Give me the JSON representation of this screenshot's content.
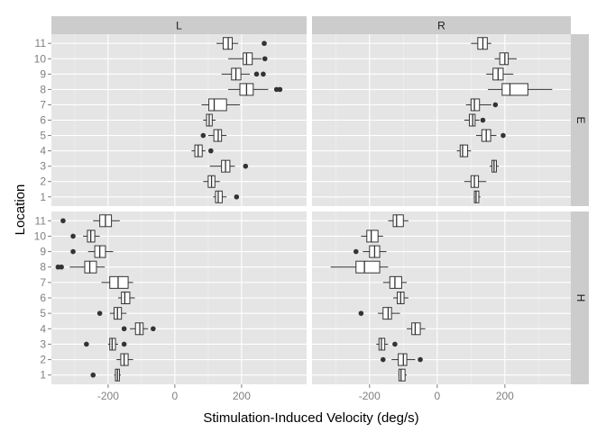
{
  "chart_data": {
    "type": "boxplot",
    "xlabel": "Stimulation-Induced Velocity (deg/s)",
    "ylabel": "Location",
    "xlim": [
      -370,
      395
    ],
    "x_ticks": [
      -200,
      0,
      200
    ],
    "x_tick_labels": [
      "-200",
      "0",
      "200"
    ],
    "locations": [
      "1",
      "2",
      "3",
      "4",
      "5",
      "6",
      "7",
      "8",
      "9",
      "10",
      "11"
    ],
    "column_facets": [
      "L",
      "R"
    ],
    "row_facets": [
      "E",
      "H"
    ],
    "grid": true,
    "panels": [
      {
        "col": "L",
        "row": "E",
        "boxes": [
          {
            "location": "1",
            "whisker_low": 115,
            "q1": 122,
            "median": 130,
            "q3": 142,
            "whisker_high": 155,
            "outliers": [
              185
            ]
          },
          {
            "location": "2",
            "whisker_low": 85,
            "q1": 100,
            "median": 110,
            "q3": 120,
            "whisker_high": 135,
            "outliers": []
          },
          {
            "location": "3",
            "whisker_low": 105,
            "q1": 140,
            "median": 152,
            "q3": 165,
            "whisker_high": 180,
            "outliers": [
              212
            ]
          },
          {
            "location": "4",
            "whisker_low": 50,
            "q1": 60,
            "median": 70,
            "q3": 82,
            "whisker_high": 92,
            "outliers": [
              108
            ]
          },
          {
            "location": "5",
            "whisker_low": 100,
            "q1": 117,
            "median": 130,
            "q3": 140,
            "whisker_high": 155,
            "outliers": [
              85
            ]
          },
          {
            "location": "6",
            "whisker_low": 85,
            "q1": 95,
            "median": 103,
            "q3": 112,
            "whisker_high": 122,
            "outliers": []
          },
          {
            "location": "7",
            "whisker_low": 80,
            "q1": 102,
            "median": 118,
            "q3": 155,
            "whisker_high": 195,
            "outliers": []
          },
          {
            "location": "8",
            "whisker_low": 160,
            "q1": 195,
            "median": 215,
            "q3": 235,
            "whisker_high": 280,
            "outliers": [
              305,
              315
            ]
          },
          {
            "location": "9",
            "whisker_low": 140,
            "q1": 170,
            "median": 183,
            "q3": 198,
            "whisker_high": 225,
            "outliers": [
              245,
              265
            ]
          },
          {
            "location": "10",
            "whisker_low": 160,
            "q1": 205,
            "median": 215,
            "q3": 232,
            "whisker_high": 260,
            "outliers": [
              270
            ]
          },
          {
            "location": "11",
            "whisker_low": 125,
            "q1": 145,
            "median": 160,
            "q3": 172,
            "whisker_high": 190,
            "outliers": [
              268
            ]
          }
        ]
      },
      {
        "col": "R",
        "row": "E",
        "boxes": [
          {
            "location": "1",
            "whisker_low": 108,
            "q1": 110,
            "median": 115,
            "q3": 123,
            "whisker_high": 128,
            "outliers": []
          },
          {
            "location": "2",
            "whisker_low": 80,
            "q1": 100,
            "median": 110,
            "q3": 122,
            "whisker_high": 145,
            "outliers": []
          },
          {
            "location": "3",
            "whisker_low": 155,
            "q1": 162,
            "median": 168,
            "q3": 175,
            "whisker_high": 182,
            "outliers": []
          },
          {
            "location": "4",
            "whisker_low": 58,
            "q1": 68,
            "median": 75,
            "q3": 90,
            "whisker_high": 100,
            "outliers": []
          },
          {
            "location": "5",
            "whisker_low": 115,
            "q1": 132,
            "median": 145,
            "q3": 158,
            "whisker_high": 175,
            "outliers": [
              195
            ]
          },
          {
            "location": "6",
            "whisker_low": 80,
            "q1": 95,
            "median": 105,
            "q3": 112,
            "whisker_high": 125,
            "outliers": [
              135
            ]
          },
          {
            "location": "7",
            "whisker_low": 85,
            "q1": 100,
            "median": 110,
            "q3": 125,
            "whisker_high": 160,
            "outliers": [
              172
            ]
          },
          {
            "location": "8",
            "whisker_low": 150,
            "q1": 192,
            "median": 215,
            "q3": 268,
            "whisker_high": 340,
            "outliers": []
          },
          {
            "location": "9",
            "whisker_low": 145,
            "q1": 165,
            "median": 180,
            "q3": 195,
            "whisker_high": 225,
            "outliers": []
          },
          {
            "location": "10",
            "whisker_low": 170,
            "q1": 185,
            "median": 200,
            "q3": 210,
            "whisker_high": 235,
            "outliers": []
          },
          {
            "location": "11",
            "whisker_low": 100,
            "q1": 120,
            "median": 135,
            "q3": 148,
            "whisker_high": 160,
            "outliers": []
          }
        ]
      },
      {
        "col": "L",
        "row": "H",
        "boxes": [
          {
            "location": "1",
            "whisker_low": -182,
            "q1": -178,
            "median": -172,
            "q3": -166,
            "whisker_high": -162,
            "outliers": [
              -245
            ]
          },
          {
            "location": "2",
            "whisker_low": -175,
            "q1": -162,
            "median": -152,
            "q3": -140,
            "whisker_high": -125,
            "outliers": []
          },
          {
            "location": "3",
            "whisker_low": -200,
            "q1": -195,
            "median": -188,
            "q3": -178,
            "whisker_high": -170,
            "outliers": [
              -265,
              -152
            ]
          },
          {
            "location": "4",
            "whisker_low": -135,
            "q1": -118,
            "median": -105,
            "q3": -95,
            "whisker_high": -80,
            "outliers": [
              -152,
              -65
            ]
          },
          {
            "location": "5",
            "whisker_low": -195,
            "q1": -182,
            "median": -172,
            "q3": -160,
            "whisker_high": -145,
            "outliers": [
              -225
            ]
          },
          {
            "location": "6",
            "whisker_low": -170,
            "q1": -160,
            "median": -150,
            "q3": -135,
            "whisker_high": -120,
            "outliers": []
          },
          {
            "location": "7",
            "whisker_low": -220,
            "q1": -195,
            "median": -170,
            "q3": -140,
            "whisker_high": -125,
            "outliers": []
          },
          {
            "location": "8",
            "whisker_low": -315,
            "q1": -270,
            "median": -255,
            "q3": -235,
            "whisker_high": -210,
            "outliers": [
              -350,
              -340
            ]
          },
          {
            "location": "9",
            "whisker_low": -260,
            "q1": -240,
            "median": -225,
            "q3": -208,
            "whisker_high": -185,
            "outliers": [
              -305
            ]
          },
          {
            "location": "10",
            "whisker_low": -275,
            "q1": -262,
            "median": -252,
            "q3": -240,
            "whisker_high": -225,
            "outliers": [
              -305
            ]
          },
          {
            "location": "11",
            "whisker_low": -245,
            "q1": -225,
            "median": -208,
            "q3": -190,
            "whisker_high": -165,
            "outliers": [
              -335
            ]
          }
        ]
      },
      {
        "col": "R",
        "row": "H",
        "boxes": [
          {
            "location": "1",
            "whisker_low": -115,
            "q1": -113,
            "median": -107,
            "q3": -95,
            "whisker_high": -90,
            "outliers": []
          },
          {
            "location": "2",
            "whisker_low": -135,
            "q1": -115,
            "median": -100,
            "q3": -90,
            "whisker_high": -65,
            "outliers": [
              -160,
              -50
            ]
          },
          {
            "location": "3",
            "whisker_low": -180,
            "q1": -172,
            "median": -165,
            "q3": -155,
            "whisker_high": -145,
            "outliers": [
              -125
            ]
          },
          {
            "location": "4",
            "whisker_low": -90,
            "q1": -75,
            "median": -65,
            "q3": -50,
            "whisker_high": -35,
            "outliers": []
          },
          {
            "location": "5",
            "whisker_low": -175,
            "q1": -160,
            "median": -145,
            "q3": -135,
            "whisker_high": -110,
            "outliers": [
              -225
            ]
          },
          {
            "location": "6",
            "whisker_low": -130,
            "q1": -118,
            "median": -108,
            "q3": -98,
            "whisker_high": -85,
            "outliers": []
          },
          {
            "location": "7",
            "whisker_low": -160,
            "q1": -140,
            "median": -125,
            "q3": -105,
            "whisker_high": -90,
            "outliers": []
          },
          {
            "location": "8",
            "whisker_low": -315,
            "q1": -240,
            "median": -215,
            "q3": -170,
            "whisker_high": -145,
            "outliers": []
          },
          {
            "location": "9",
            "whisker_low": -220,
            "q1": -200,
            "median": -185,
            "q3": -170,
            "whisker_high": -150,
            "outliers": [
              -240
            ]
          },
          {
            "location": "10",
            "whisker_low": -225,
            "q1": -208,
            "median": -195,
            "q3": -175,
            "whisker_high": -160,
            "outliers": []
          },
          {
            "location": "11",
            "whisker_low": -145,
            "q1": -130,
            "median": -120,
            "q3": -100,
            "whisker_high": -85,
            "outliers": []
          }
        ]
      }
    ]
  }
}
